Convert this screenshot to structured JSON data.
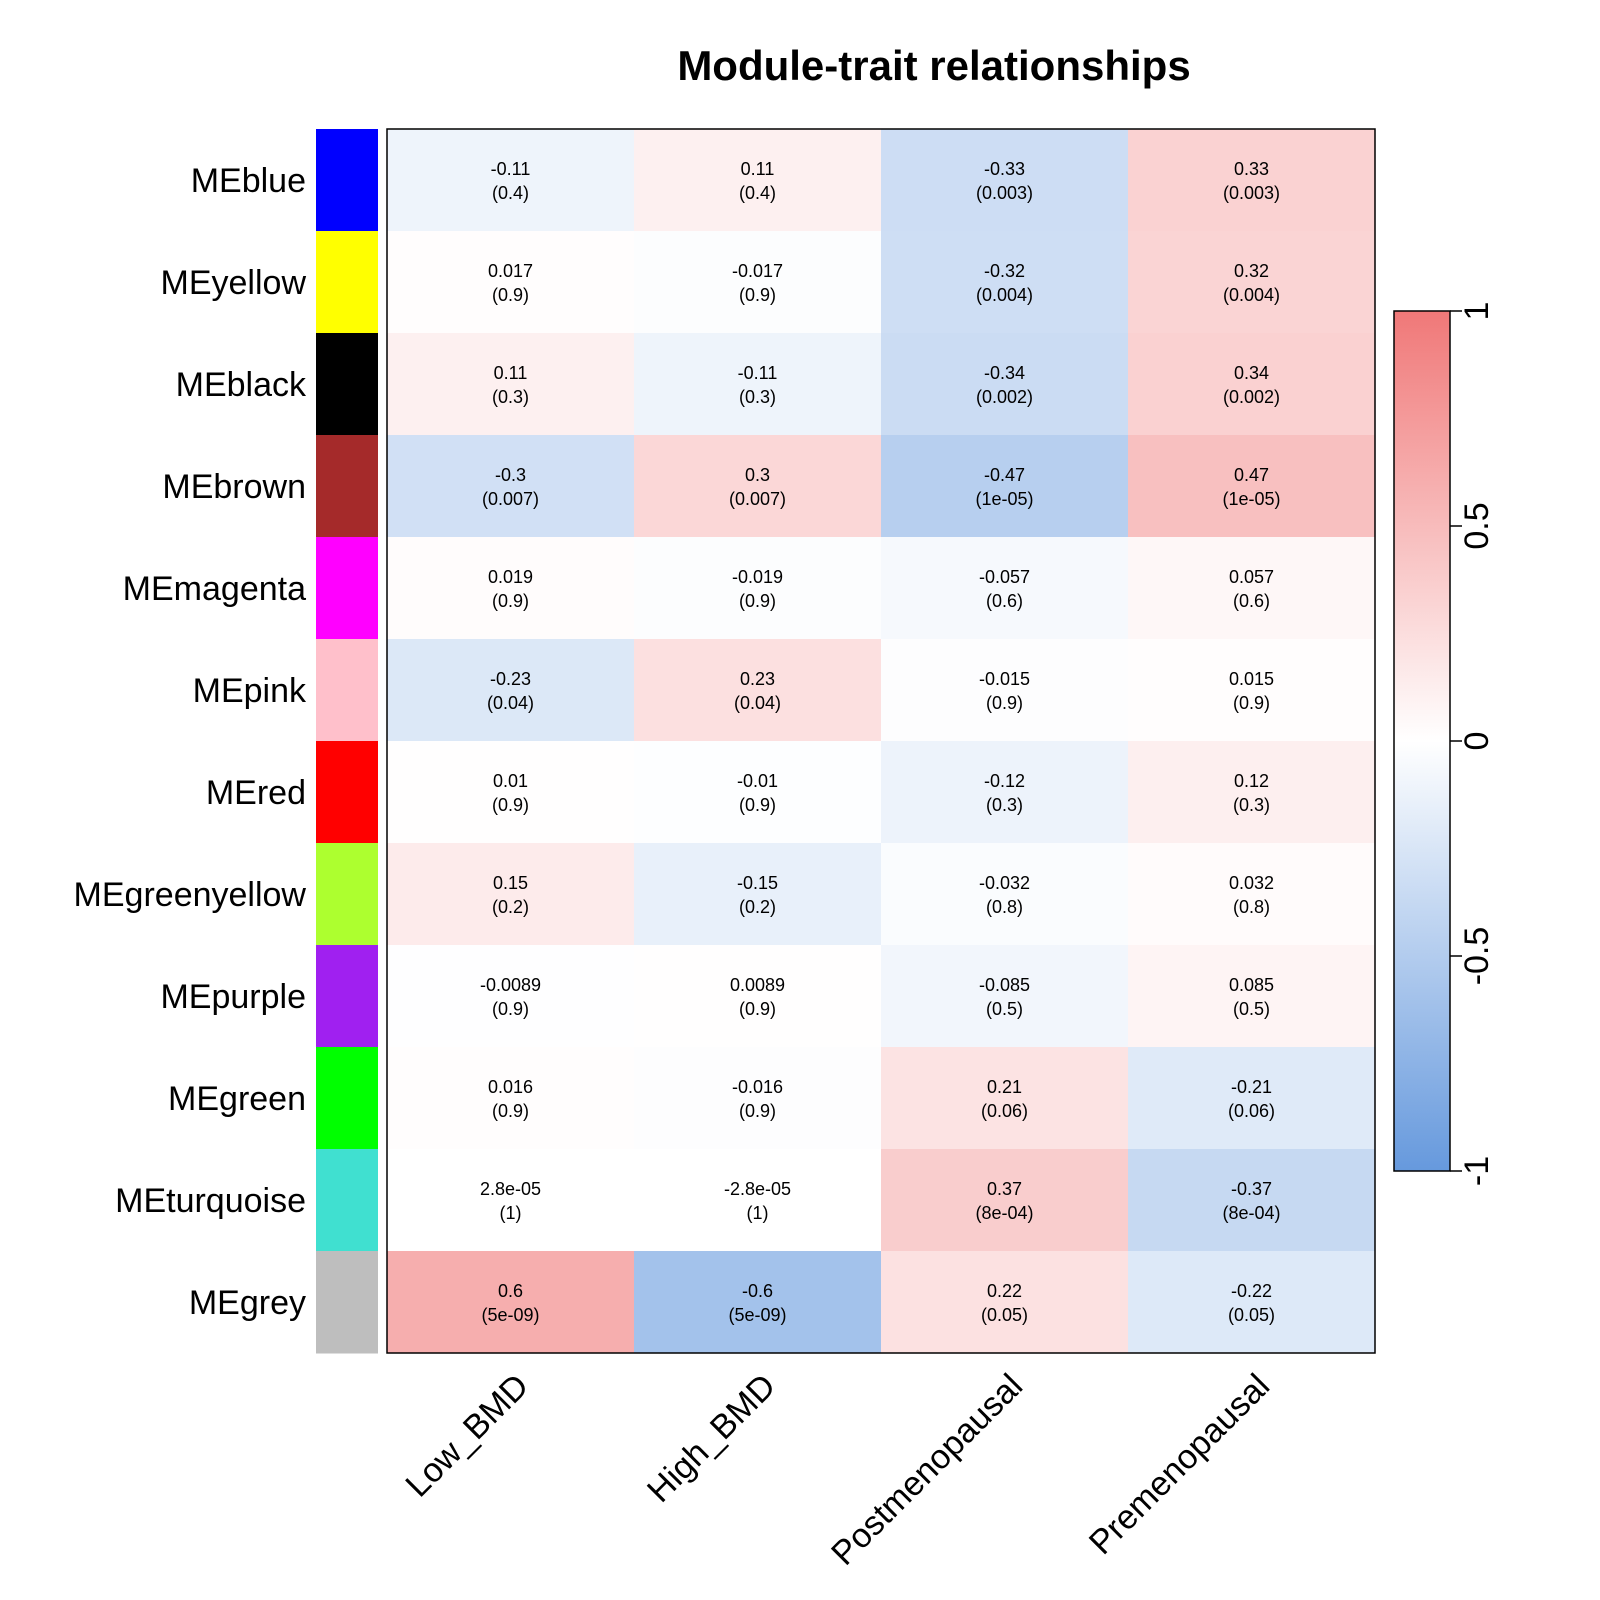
{
  "chart_data": {
    "type": "heatmap",
    "title": "Module-trait relationships",
    "rows": [
      "MEblue",
      "MEyellow",
      "MEblack",
      "MEbrown",
      "MEmagenta",
      "MEpink",
      "MEred",
      "MEgreenyellow",
      "MEpurple",
      "MEgreen",
      "MEturquoise",
      "MEgrey"
    ],
    "row_colors": [
      "#0000ff",
      "#ffff00",
      "#000000",
      "#a52a2a",
      "#ff00ff",
      "#ffc0cb",
      "#ff0000",
      "#adff2f",
      "#a020f0",
      "#00ff00",
      "#40e0d0",
      "#bebebe"
    ],
    "columns": [
      "Low_BMD",
      "High_BMD",
      "Postmenopausal",
      "Premenopausal"
    ],
    "values": [
      [
        -0.11,
        0.11,
        -0.33,
        0.33
      ],
      [
        0.017,
        -0.017,
        -0.32,
        0.32
      ],
      [
        0.11,
        -0.11,
        -0.34,
        0.34
      ],
      [
        -0.3,
        0.3,
        -0.47,
        0.47
      ],
      [
        0.019,
        -0.019,
        -0.057,
        0.057
      ],
      [
        -0.23,
        0.23,
        -0.015,
        0.015
      ],
      [
        0.01,
        -0.01,
        -0.12,
        0.12
      ],
      [
        0.15,
        -0.15,
        -0.032,
        0.032
      ],
      [
        -0.0089,
        0.0089,
        -0.085,
        0.085
      ],
      [
        0.016,
        -0.016,
        0.21,
        -0.21
      ],
      [
        2.8e-05,
        -2.8e-05,
        0.37,
        -0.37
      ],
      [
        0.6,
        -0.6,
        0.22,
        -0.22
      ]
    ],
    "value_labels": [
      [
        "-0.11",
        "0.11",
        "-0.33",
        "0.33"
      ],
      [
        "0.017",
        "-0.017",
        "-0.32",
        "0.32"
      ],
      [
        "0.11",
        "-0.11",
        "-0.34",
        "0.34"
      ],
      [
        "-0.3",
        "0.3",
        "-0.47",
        "0.47"
      ],
      [
        "0.019",
        "-0.019",
        "-0.057",
        "0.057"
      ],
      [
        "-0.23",
        "0.23",
        "-0.015",
        "0.015"
      ],
      [
        "0.01",
        "-0.01",
        "-0.12",
        "0.12"
      ],
      [
        "0.15",
        "-0.15",
        "-0.032",
        "0.032"
      ],
      [
        "-0.0089",
        "0.0089",
        "-0.085",
        "0.085"
      ],
      [
        "0.016",
        "-0.016",
        "0.21",
        "-0.21"
      ],
      [
        "2.8e-05",
        "-2.8e-05",
        "0.37",
        "-0.37"
      ],
      [
        "0.6",
        "-0.6",
        "0.22",
        "-0.22"
      ]
    ],
    "p_labels": [
      [
        "(0.4)",
        "(0.4)",
        "(0.003)",
        "(0.003)"
      ],
      [
        "(0.9)",
        "(0.9)",
        "(0.004)",
        "(0.004)"
      ],
      [
        "(0.3)",
        "(0.3)",
        "(0.002)",
        "(0.002)"
      ],
      [
        "(0.007)",
        "(0.007)",
        "(1e-05)",
        "(1e-05)"
      ],
      [
        "(0.9)",
        "(0.9)",
        "(0.6)",
        "(0.6)"
      ],
      [
        "(0.04)",
        "(0.04)",
        "(0.9)",
        "(0.9)"
      ],
      [
        "(0.9)",
        "(0.9)",
        "(0.3)",
        "(0.3)"
      ],
      [
        "(0.2)",
        "(0.2)",
        "(0.8)",
        "(0.8)"
      ],
      [
        "(0.9)",
        "(0.9)",
        "(0.5)",
        "(0.5)"
      ],
      [
        "(0.9)",
        "(0.9)",
        "(0.06)",
        "(0.06)"
      ],
      [
        "(1)",
        "(1)",
        "(8e-04)",
        "(8e-04)"
      ],
      [
        "(5e-09)",
        "(5e-09)",
        "(0.05)",
        "(0.05)"
      ]
    ],
    "colorbar": {
      "range": [
        -1,
        1
      ],
      "ticks": [
        -1,
        -0.5,
        0,
        0.5,
        1
      ],
      "tick_labels": [
        "-1",
        "-0.5",
        "0",
        "0.5",
        "1"
      ],
      "low_color": "#6699dd",
      "mid_color": "#ffffff",
      "high_color": "#f07878"
    }
  }
}
